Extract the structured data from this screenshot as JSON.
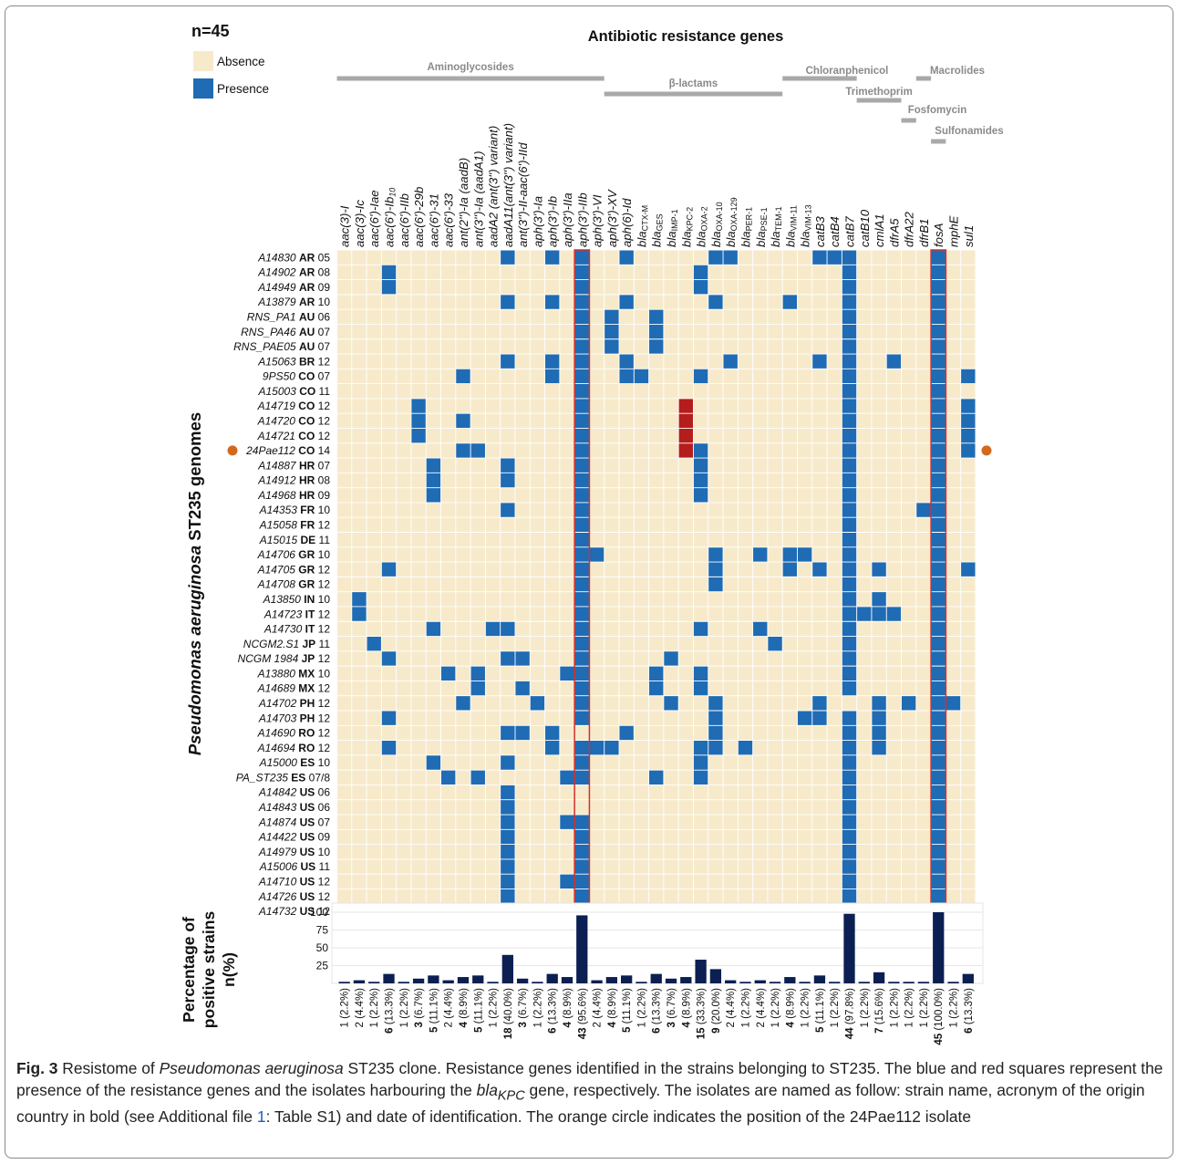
{
  "figure": {
    "n_label": "n=45",
    "title": "Antibiotic resistance genes",
    "legend": [
      {
        "label": "Absence",
        "color": "#f7eacb"
      },
      {
        "label": "Presence",
        "color": "#1f6bb4"
      }
    ],
    "colors": {
      "absence": "#f7eacb",
      "presence": "#1f6bb4",
      "kpc": "#b51d1d",
      "highlight_border": "#d32f2f",
      "class_bar": "#a9a9a9",
      "pct_bar": "#0b1f52",
      "marker": "#d2691e"
    },
    "y_axis_label_italic": "Pseudomonas aeruginosa",
    "y_axis_label_rest": " ST235 genomes",
    "bar_axis_label": [
      "Percentage of",
      "positive strains",
      "n(%)"
    ],
    "classes": [
      {
        "name": "Aminoglycosides",
        "start": 0,
        "end": 17,
        "level": 0
      },
      {
        "name": "β-lactams",
        "start": 18,
        "end": 29,
        "level": 1
      },
      {
        "name": "Chloranphenicol",
        "start": 30,
        "end": 34,
        "level": 0
      },
      {
        "name": "Trimethoprim",
        "start": 35,
        "end": 37,
        "level": 2
      },
      {
        "name": "Fosfomycin",
        "start": 38,
        "end": 38,
        "level": 3
      },
      {
        "name": "Macrolides",
        "start": 39,
        "end": 39,
        "level": 0
      },
      {
        "name": "Sulfonamides",
        "start": 40,
        "end": 40,
        "level": 4
      }
    ],
    "genes": [
      {
        "main": "aac(3)-I",
        "sub": ""
      },
      {
        "main": "aac(3)-Ic",
        "sub": ""
      },
      {
        "main": "aac(6')-Iae",
        "sub": ""
      },
      {
        "main": "aac(6')-Ib",
        "sub": "10"
      },
      {
        "main": "aac(6')-IIb",
        "sub": ""
      },
      {
        "main": "aac(6')-29b",
        "sub": ""
      },
      {
        "main": "aac(6')-31",
        "sub": ""
      },
      {
        "main": "aac(6')-33",
        "sub": ""
      },
      {
        "main": "ant(2'')-Ia (aadB)",
        "sub": ""
      },
      {
        "main": "ant(3'')-Ia (aadA1)",
        "sub": ""
      },
      {
        "main": "aadA2 (ant(3'') variant)",
        "sub": ""
      },
      {
        "main": "aadA11(ant(3'') variant)",
        "sub": ""
      },
      {
        "main": "ant(3'')-II-aac(6')-IId",
        "sub": ""
      },
      {
        "main": "aph(3')-Ia",
        "sub": ""
      },
      {
        "main": "aph(3')-Ib",
        "sub": ""
      },
      {
        "main": "aph(3')-IIa",
        "sub": ""
      },
      {
        "main": "aph(3')-IIb",
        "sub": ""
      },
      {
        "main": "aph(3')-VI",
        "sub": ""
      },
      {
        "main": "aph(3')-XV",
        "sub": ""
      },
      {
        "main": "aph(6)-Id",
        "sub": ""
      },
      {
        "main": "bla",
        "sub": "CTX-M"
      },
      {
        "main": "bla",
        "sub": "GES"
      },
      {
        "main": "bla",
        "sub": "IMP-1"
      },
      {
        "main": "bla",
        "sub": "KPC-2"
      },
      {
        "main": "bla",
        "sub": "OXA-2"
      },
      {
        "main": "bla",
        "sub": "OXA-10"
      },
      {
        "main": "bla",
        "sub": "OXA-129"
      },
      {
        "main": "bla",
        "sub": "PER-1"
      },
      {
        "main": "bla",
        "sub": "PSE-1"
      },
      {
        "main": "bla",
        "sub": "TEM-1"
      },
      {
        "main": "bla",
        "sub": "VIM-11"
      },
      {
        "main": "bla",
        "sub": "VIM-13"
      },
      {
        "main": "catB3",
        "sub": ""
      },
      {
        "main": "catB4",
        "sub": ""
      },
      {
        "main": "catB7",
        "sub": ""
      },
      {
        "main": "catB10",
        "sub": ""
      },
      {
        "main": "cmlA1",
        "sub": ""
      },
      {
        "main": "dfrA5",
        "sub": ""
      },
      {
        "main": "dfrA22",
        "sub": ""
      },
      {
        "main": "dfrB1",
        "sub": ""
      },
      {
        "main": "fosA",
        "sub": ""
      },
      {
        "main": "mphE",
        "sub": ""
      },
      {
        "main": "sul1",
        "sub": ""
      }
    ],
    "highlight_columns": [
      16,
      40
    ],
    "strains": [
      {
        "name": "A14830",
        "country": "AR",
        "date": "05",
        "present": [
          11,
          14,
          16,
          19,
          25,
          26,
          32,
          33,
          34,
          40
        ]
      },
      {
        "name": "A14902",
        "country": "AR",
        "date": "08",
        "present": [
          3,
          16,
          24,
          34,
          40
        ]
      },
      {
        "name": "A14949",
        "country": "AR",
        "date": "09",
        "present": [
          3,
          16,
          24,
          34,
          40
        ]
      },
      {
        "name": "A13879",
        "country": "AR",
        "date": "10",
        "present": [
          11,
          14,
          16,
          19,
          25,
          30,
          34,
          40
        ]
      },
      {
        "name": "RNS_PA1",
        "country": "AU",
        "date": "06",
        "present": [
          16,
          18,
          21,
          34,
          40
        ]
      },
      {
        "name": "RNS_PA46",
        "country": "AU",
        "date": "07",
        "present": [
          16,
          18,
          21,
          34,
          40
        ]
      },
      {
        "name": "RNS_PAE05",
        "country": "AU",
        "date": "07",
        "present": [
          16,
          18,
          21,
          34,
          40
        ]
      },
      {
        "name": "A15063",
        "country": "BR",
        "date": "12",
        "present": [
          11,
          14,
          16,
          19,
          26,
          32,
          34,
          37,
          40
        ]
      },
      {
        "name": "9PS50",
        "country": "CO",
        "date": "07",
        "present": [
          8,
          14,
          16,
          19,
          20,
          24,
          34,
          40,
          42
        ]
      },
      {
        "name": "A15003",
        "country": "CO",
        "date": "11",
        "present": [
          16,
          34,
          40
        ]
      },
      {
        "name": "A14719",
        "country": "CO",
        "date": "12",
        "present": [
          5,
          16,
          34,
          40,
          42
        ],
        "kpc": [
          23
        ]
      },
      {
        "name": "A14720",
        "country": "CO",
        "date": "12",
        "present": [
          5,
          8,
          16,
          34,
          40,
          42
        ],
        "kpc": [
          23
        ]
      },
      {
        "name": "A14721",
        "country": "CO",
        "date": "12",
        "present": [
          5,
          16,
          34,
          40,
          42
        ],
        "kpc": [
          23
        ]
      },
      {
        "name": "24Pae112",
        "country": "CO",
        "date": "14",
        "present": [
          8,
          9,
          16,
          24,
          34,
          40,
          42
        ],
        "kpc": [
          23
        ],
        "marker": true
      },
      {
        "name": "A14887",
        "country": "HR",
        "date": "07",
        "present": [
          6,
          11,
          16,
          24,
          34,
          40
        ]
      },
      {
        "name": "A14912",
        "country": "HR",
        "date": "08",
        "present": [
          6,
          11,
          16,
          24,
          34,
          40
        ]
      },
      {
        "name": "A14968",
        "country": "HR",
        "date": "09",
        "present": [
          6,
          16,
          24,
          34,
          40
        ]
      },
      {
        "name": "A14353",
        "country": "FR",
        "date": "10",
        "present": [
          11,
          16,
          34,
          39,
          40
        ]
      },
      {
        "name": "A15058",
        "country": "FR",
        "date": "12",
        "present": [
          16,
          34,
          40
        ]
      },
      {
        "name": "A15015",
        "country": "DE",
        "date": "11",
        "present": [
          16,
          34,
          40
        ]
      },
      {
        "name": "A14706",
        "country": "GR",
        "date": "10",
        "present": [
          16,
          17,
          25,
          28,
          30,
          31,
          34,
          40
        ]
      },
      {
        "name": "A14705",
        "country": "GR",
        "date": "12",
        "present": [
          3,
          16,
          25,
          30,
          32,
          34,
          36,
          40,
          42
        ]
      },
      {
        "name": "A14708",
        "country": "GR",
        "date": "12",
        "present": [
          16,
          25,
          34,
          40
        ]
      },
      {
        "name": "A13850",
        "country": "IN",
        "date": "10",
        "present": [
          1,
          16,
          34,
          36,
          40
        ]
      },
      {
        "name": "A14723",
        "country": "IT",
        "date": "12",
        "present": [
          1,
          16,
          34,
          35,
          36,
          37,
          40
        ]
      },
      {
        "name": "A14730",
        "country": "IT",
        "date": "12",
        "present": [
          6,
          10,
          11,
          16,
          24,
          28,
          34,
          40
        ]
      },
      {
        "name": "NCGM2.S1",
        "country": "JP",
        "date": "11",
        "present": [
          2,
          16,
          29,
          34,
          40
        ]
      },
      {
        "name": "NCGM 1984",
        "country": "JP",
        "date": "12",
        "present": [
          3,
          11,
          12,
          16,
          22,
          34,
          40
        ]
      },
      {
        "name": "A13880",
        "country": "MX",
        "date": "10",
        "present": [
          7,
          9,
          15,
          16,
          21,
          24,
          34,
          40
        ]
      },
      {
        "name": "A14689",
        "country": "MX",
        "date": "12",
        "present": [
          9,
          12,
          16,
          21,
          24,
          34,
          40
        ]
      },
      {
        "name": "A14702",
        "country": "PH",
        "date": "12",
        "present": [
          8,
          13,
          16,
          22,
          25,
          32,
          36,
          38,
          40,
          41
        ]
      },
      {
        "name": "A14703",
        "country": "PH",
        "date": "12",
        "present": [
          3,
          16,
          25,
          31,
          32,
          34,
          36,
          40
        ]
      },
      {
        "name": "A14690",
        "country": "RO",
        "date": "12",
        "present": [
          11,
          12,
          14,
          19,
          25,
          34,
          36,
          40
        ]
      },
      {
        "name": "A14694",
        "country": "RO",
        "date": "12",
        "present": [
          3,
          14,
          16,
          17,
          18,
          24,
          25,
          27,
          34,
          36,
          40
        ]
      },
      {
        "name": "A15000",
        "country": "ES",
        "date": "10",
        "present": [
          6,
          11,
          16,
          24,
          34,
          40
        ]
      },
      {
        "name": "PA_ST235",
        "country": "ES",
        "date": "07/8",
        "present": [
          7,
          9,
          15,
          16,
          21,
          24,
          34,
          40
        ]
      },
      {
        "name": "A14842",
        "country": "US",
        "date": "06",
        "present": [
          11,
          34,
          40
        ]
      },
      {
        "name": "A14843",
        "country": "US",
        "date": "06",
        "present": [
          11,
          34,
          40
        ]
      },
      {
        "name": "A14874",
        "country": "US",
        "date": "07",
        "present": [
          11,
          15,
          16,
          34,
          40
        ]
      },
      {
        "name": "A14422",
        "country": "US",
        "date": "09",
        "present": [
          11,
          16,
          34,
          40
        ]
      },
      {
        "name": "A14979",
        "country": "US",
        "date": "10",
        "present": [
          11,
          16,
          34,
          40
        ]
      },
      {
        "name": "A15006",
        "country": "US",
        "date": "11",
        "present": [
          11,
          16,
          34,
          40
        ]
      },
      {
        "name": "A14710",
        "country": "US",
        "date": "12",
        "present": [
          11,
          15,
          16,
          34,
          40
        ]
      },
      {
        "name": "A14726",
        "country": "US",
        "date": "12",
        "present": [
          11,
          16,
          34,
          40
        ]
      },
      {
        "name": "A14732",
        "country": "US",
        "date": "12",
        "present": [
          0,
          4,
          9,
          16,
          24,
          34,
          40
        ]
      }
    ]
  },
  "chart_data": {
    "type": "bar",
    "ylabel": "Percentage of positive strains n(%)",
    "ylim": [
      0,
      100
    ],
    "yticks": [
      25,
      50,
      75,
      100
    ],
    "grid": true,
    "categories": [
      "aac(3)-I",
      "aac(3)-Ic",
      "aac(6')-Iae",
      "aac(6')-Ib10",
      "aac(6')-IIb",
      "aac(6')-29b",
      "aac(6')-31",
      "aac(6')-33",
      "ant(2'')-Ia (aadB)",
      "ant(3'')-Ia (aadA1)",
      "aadA2 (ant(3'') variant)",
      "aadA11(ant(3'') variant)",
      "ant(3'')-II-aac(6')-IId",
      "aph(3')-Ia",
      "aph(3')-Ib",
      "aph(3')-IIa",
      "aph(3')-IIb",
      "aph(3')-VI",
      "aph(3')-XV",
      "aph(6)-Id",
      "blaCTX-M",
      "blaGES",
      "blaIMP-1",
      "blaKPC-2",
      "blaOXA-2",
      "blaOXA-10",
      "blaOXA-129",
      "blaPER-1",
      "blaPSE-1",
      "blaTEM-1",
      "blaVIM-11",
      "blaVIM-13",
      "catB3",
      "catB4",
      "catB7",
      "catB10",
      "cmlA1",
      "dfrA5",
      "dfrA22",
      "dfrB1",
      "fosA",
      "mphE",
      "sul1"
    ],
    "counts": [
      1,
      2,
      1,
      6,
      1,
      3,
      5,
      2,
      4,
      5,
      1,
      18,
      3,
      1,
      6,
      4,
      43,
      2,
      4,
      5,
      1,
      6,
      3,
      4,
      15,
      9,
      2,
      1,
      2,
      1,
      4,
      1,
      5,
      1,
      44,
      1,
      7,
      1,
      1,
      1,
      45,
      1,
      6
    ],
    "values": [
      2.2,
      4.4,
      2.2,
      13.3,
      2.2,
      6.7,
      11.1,
      4.4,
      8.9,
      11.1,
      2.2,
      40.0,
      6.7,
      2.2,
      13.3,
      8.9,
      95.6,
      4.4,
      8.9,
      11.1,
      2.2,
      13.3,
      6.7,
      8.9,
      33.3,
      20.0,
      4.4,
      2.2,
      4.4,
      2.2,
      8.9,
      2.2,
      11.1,
      2.2,
      97.8,
      2.2,
      15.6,
      2.2,
      2.2,
      2.2,
      100.0,
      2.2,
      13.3
    ],
    "labels": [
      "(2.2%)",
      "(4.4%)",
      "(2.2%)",
      "(13.3%)",
      "(2.2%)",
      "(6.7%)",
      "(11.1%)",
      "(4.4%)",
      "(8.9%)",
      "(11.1%)",
      "(2.2%)",
      "(40.0%)",
      "(6.7%)",
      "(2.2%)",
      "(13.3%)",
      "(8.9%)",
      "(95.6%)",
      "(4.4%)",
      "(8.9%)",
      "(11.1%)",
      "(2.2%)",
      "(13.3%)",
      "(6.7%)",
      "(8.9%)",
      "(33.3%)",
      "(20.0%)",
      "(4.4%)",
      "(2.2%)",
      "(4.4%)",
      "(2.2%)",
      "(8.9%)",
      "(2.2%)",
      "(11.1%)",
      "(2.2%)",
      "(97.8%)",
      "(2.2%)",
      "(15.6%)",
      "(2.2%)",
      "(2.2%)",
      "(2.2%)",
      "(100.0%)",
      "(2.2%)",
      "(13.3%)"
    ]
  },
  "caption": {
    "fig_label": "Fig. 3",
    "part1": " Resistome of ",
    "species": "Pseudomonas aeruginosa",
    "part2": " ST235 clone. Resistance genes identified in the strains belonging to ST235. The blue and red squares represent the presence of the resistance genes and the isolates harbouring the ",
    "gene_main": "bla",
    "gene_sub": "KPC",
    "part3": " gene, respectively. The isolates are named as follow: strain name, acronym of the origin country in bold (see Additional file ",
    "ref": "1",
    "part4": ": Table S1) and date of identification. The orange circle indicates the position of the 24Pae112 isolate"
  }
}
